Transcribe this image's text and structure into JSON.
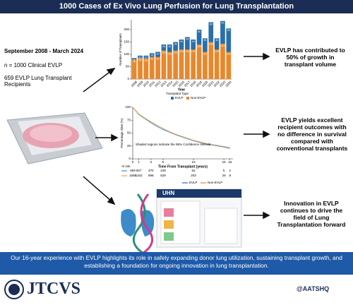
{
  "header": {
    "title": "1000 Cases of Ex Vivo Lung Perfusion for Lung Transplantation"
  },
  "left": {
    "period": "September 2008 - March 2024",
    "n": "n = 1000 Clinical EVLP",
    "recipients": "659 EVLP Lung Transplant Recipients"
  },
  "findings": [
    "EVLP has contributed to 50% of growth in transplant volume",
    "EVLP yields excellent recipient outcomes with no difference in survival compared with conventional transplants",
    "Innovation in EVLP continues to drive the field of Lung Transplantation forward"
  ],
  "screenshot": {
    "logo": "UHN"
  },
  "chart_data": [
    {
      "type": "bar",
      "stacked": true,
      "x_label": "Year",
      "y_label": "Number of Transplants",
      "legend_title": "Transplant Type",
      "categories": [
        "2008",
        "2009",
        "2010",
        "2011",
        "2012",
        "2013",
        "2014",
        "2015",
        "2016",
        "2017",
        "2018",
        "2019",
        "2020",
        "2021",
        "2022",
        "2023",
        "2024"
      ],
      "series": [
        {
          "name": "Non-EVLP",
          "color": "#e8882b",
          "values": [
            79,
            85,
            83,
            90,
            90,
            115,
            110,
            115,
            120,
            120,
            120,
            140,
            110,
            150,
            120,
            143,
            110
          ]
        },
        {
          "name": "EVLP",
          "color": "#2a6fa8",
          "values": [
            6,
            10,
            12,
            15,
            20,
            25,
            30,
            35,
            40,
            50,
            40,
            60,
            55,
            80,
            45,
            92,
            95
          ]
        }
      ],
      "ylim": [
        0,
        240
      ],
      "yticks": [
        0,
        50,
        100,
        150,
        200
      ]
    },
    {
      "type": "line",
      "x_label": "Time From Transplant (years)",
      "y_label": "Percentage Alive (%)",
      "note": "Shaded regions indicate the 95% Confidence Interval",
      "at_risk_title": "At risk",
      "x": [
        0,
        1,
        2,
        3,
        4,
        5,
        6,
        7,
        8,
        9,
        10,
        11,
        12,
        13,
        14,
        15,
        16
      ],
      "series": [
        {
          "name": "EVLP",
          "color": "#4a90d9",
          "values": [
            100,
            86,
            78,
            70,
            63,
            57,
            52,
            47,
            43,
            39,
            35,
            32,
            29,
            27,
            25,
            23,
            20
          ],
          "at_risk": [
            659,
            567,
            370,
            249,
            52,
            5,
            2
          ]
        },
        {
          "name": "Non-EVLP",
          "color": "#e8a050",
          "values": [
            100,
            87,
            79,
            72,
            65,
            59,
            53,
            48,
            44,
            40,
            36,
            33,
            30,
            28,
            26,
            24,
            22
          ],
          "at_risk": [
            1556,
            1342,
            898,
            629,
            203,
            29,
            8
          ]
        }
      ],
      "xlim": [
        0,
        16.5
      ],
      "xticks": [
        0,
        1,
        3,
        5,
        10,
        15,
        16
      ],
      "ylim": [
        0,
        100
      ],
      "yticks": [
        0,
        25,
        50,
        75,
        100
      ]
    }
  ],
  "footer": {
    "text": "Our 16-year experience with EVLP highlights its role in safely expanding donor lung utilization, sustaining transplant growth, and establishing a foundation for ongoing innovation in lung transplantation.",
    "journal": "JTCVS",
    "handle": "@AATSHQ"
  }
}
